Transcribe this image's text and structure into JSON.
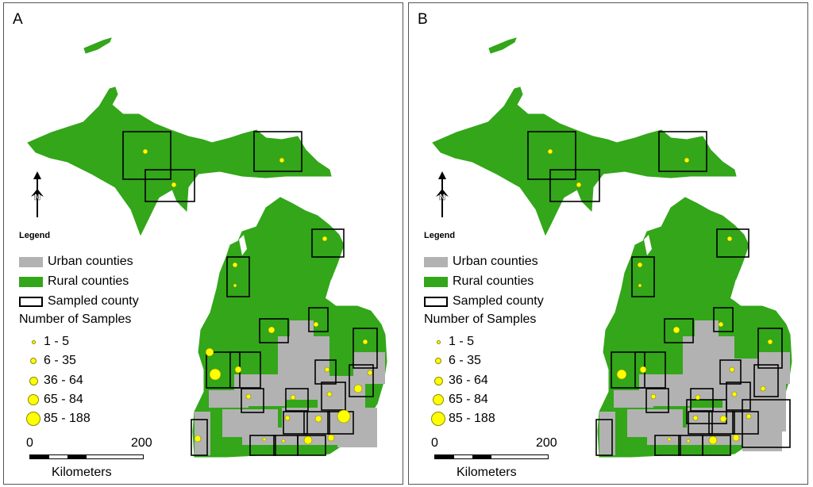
{
  "panels": [
    {
      "label": "A"
    },
    {
      "label": "B"
    }
  ],
  "legend": {
    "title": "Legend",
    "urban": "Urban counties",
    "rural": "Rural counties",
    "sampled": "Sampled county",
    "samples_title": "Number of Samples",
    "size_classes": [
      "1 - 5",
      "6 - 35",
      "36 - 64",
      "65 - 84",
      "85 - 188"
    ]
  },
  "scale": {
    "start": "0",
    "end": "200",
    "units": "Kilometers"
  },
  "colors": {
    "urban": "#b2b2b2",
    "rural": "#33a61a",
    "sample_dot": "#ffff00",
    "outline": "#000000"
  },
  "north_arrow": "north-arrow-icon"
}
